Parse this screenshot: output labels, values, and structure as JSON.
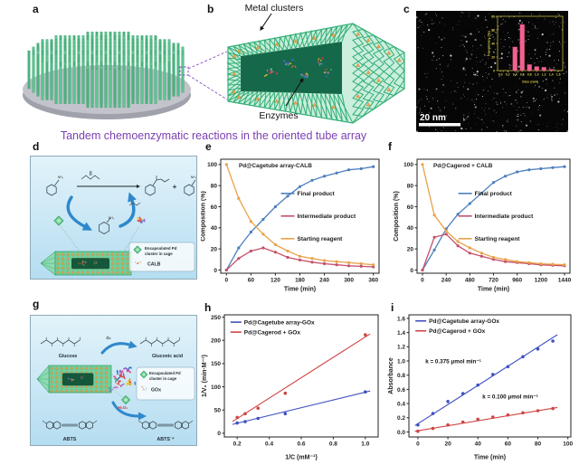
{
  "figure": {
    "caption": "Tandem chemoenzymatic reactions in the oriented tube array",
    "panel_labels": {
      "a": "a",
      "b": "b",
      "c": "c",
      "d": "d",
      "e": "e",
      "f": "f",
      "g": "g",
      "h": "h",
      "i": "i"
    }
  },
  "panel_b": {
    "metal_clusters": "Metal clusters",
    "enzymes": "Enzymes"
  },
  "panel_c": {
    "scale_bar": "20 nm"
  },
  "cage_legend": {
    "l1": "Encapsulated Pd",
    "l2": "cluster in cage"
  },
  "panel_d": {
    "plus": "+",
    "nh2": "NH₂",
    "enzyme": "CALB"
  },
  "panel_g": {
    "glucose": "Glucose",
    "gluconic_acid": "Gluconic acid",
    "o2": "O₂",
    "h2o2": "H₂O₂",
    "abts": "ABTS",
    "abts_radical": "ABTS˙⁺",
    "enzyme": "GOx"
  },
  "colors": {
    "caption_purple": "#7c3fb4",
    "pillar_green": "#52bd88",
    "lattice_green": "#2fae74",
    "cluster_orange": "#e8a04c",
    "series_blue": "#4d7fbe",
    "series_red": "#c4506b",
    "series_orange": "#e9a24b",
    "kinetics_blue": "#3f51c1",
    "kinetics_red": "#d04545",
    "hist_pink": "#f2628f",
    "hist_axis_yellow": "#d8ce4a",
    "scheme_arrow_blue": "#2f88cb"
  },
  "chart_data": [
    {
      "id": "size_histogram",
      "type": "bar",
      "xlabel": "Size (nm)",
      "ylabel": "Frequency (%)",
      "xlim": [
        -0.08,
        1.72
      ],
      "ylim": [
        0,
        80
      ],
      "xticks": [
        0,
        0.2,
        0.4,
        0.6,
        0.8,
        1.0,
        1.2,
        1.4,
        1.6
      ],
      "xdec": 1,
      "yticks": [
        0,
        20,
        40,
        60,
        80
      ],
      "ydec": 0,
      "x": [
        0.4,
        0.6,
        0.8,
        1.0,
        1.2,
        1.4
      ],
      "bar_width": 0.13,
      "bar_color": "#f2628f",
      "axis_color": "#d8ce4a",
      "series": [
        {
          "name": "",
          "values": [
            35,
            68,
            9,
            6,
            5,
            2
          ]
        }
      ]
    },
    {
      "id": "calb_tube",
      "type": "line",
      "title": "Pd@Cagetube array-CALB",
      "xlabel": "Time (min)",
      "ylabel": "Composition (%)",
      "xlim": [
        -14,
        374
      ],
      "ylim": [
        -3,
        105
      ],
      "xticks": [
        0,
        60,
        120,
        180,
        240,
        300,
        360
      ],
      "xdec": 0,
      "yticks": [
        0,
        20,
        40,
        60,
        80,
        100
      ],
      "ydec": 0,
      "x": [
        0,
        30,
        60,
        90,
        120,
        150,
        180,
        210,
        240,
        270,
        300,
        330,
        360
      ],
      "legend_pos": [
        0.38,
        0.3
      ],
      "series": [
        {
          "name": "Final product",
          "color": "#4d7fbe",
          "values": [
            0,
            21,
            36,
            48,
            60,
            70,
            79,
            85,
            89,
            92,
            95,
            96,
            98
          ]
        },
        {
          "name": "Intermediate product",
          "color": "#c4506b",
          "values": [
            0,
            11,
            18,
            21,
            17,
            12,
            9.5,
            7.5,
            6,
            5,
            4,
            3.5,
            3
          ]
        },
        {
          "name": "Starting reagent",
          "color": "#e9a24b",
          "values": [
            100,
            68,
            46,
            34,
            24,
            18,
            13,
            11,
            9,
            8,
            7,
            6,
            5
          ]
        }
      ]
    },
    {
      "id": "calb_rod",
      "type": "line",
      "title": "Pd@Cagerod + CALB",
      "xlabel": "Time (min)",
      "ylabel": "Composition (%)",
      "xlim": [
        -55,
        1495
      ],
      "ylim": [
        -3,
        105
      ],
      "xticks": [
        0,
        240,
        480,
        720,
        960,
        1200,
        1440
      ],
      "xdec": 0,
      "yticks": [
        0,
        20,
        40,
        60,
        80,
        100
      ],
      "ydec": 0,
      "x": [
        0,
        120,
        240,
        360,
        480,
        600,
        720,
        840,
        960,
        1080,
        1200,
        1320,
        1440
      ],
      "legend_pos": [
        0.27,
        0.3
      ],
      "series": [
        {
          "name": "Final product",
          "color": "#4d7fbe",
          "values": [
            0,
            19,
            39,
            53,
            63,
            73,
            83,
            89,
            93,
            95,
            96,
            97,
            98
          ]
        },
        {
          "name": "Intermediate product",
          "color": "#c4506b",
          "values": [
            0,
            31,
            34,
            23,
            16,
            13,
            10,
            8,
            7,
            6,
            5,
            4.5,
            4
          ]
        },
        {
          "name": "Starting reagent",
          "color": "#e9a24b",
          "values": [
            100,
            52,
            37,
            27,
            21,
            16,
            12,
            10,
            8,
            7,
            6,
            5.5,
            5
          ]
        }
      ]
    },
    {
      "id": "gox_lineweaver",
      "type": "scatter",
      "xlabel": "1/C (mM⁻¹)",
      "ylabel": "1/V₀ (min·M⁻¹)",
      "xlim": [
        0.12,
        1.08
      ],
      "ylim": [
        -8,
        255
      ],
      "xticks": [
        0.2,
        0.4,
        0.6,
        0.8,
        1.0
      ],
      "xdec": 1,
      "yticks": [
        0,
        50,
        100,
        150,
        200,
        250
      ],
      "ydec": 0,
      "legend_pos": [
        0.04,
        0.06
      ],
      "series": [
        {
          "name": "Pd@Cagetube array-GOx",
          "color": "#3f51c1",
          "x": [
            0.2,
            0.25,
            0.33,
            0.5,
            1.0
          ],
          "values": [
            22,
            25,
            32,
            42,
            89
          ],
          "fit": [
            [
              0.17,
              19
            ],
            [
              1.03,
              91
            ]
          ]
        },
        {
          "name": "Pd@Cagerod + GOx",
          "color": "#d04545",
          "x": [
            0.2,
            0.25,
            0.33,
            0.5,
            1.0
          ],
          "values": [
            34,
            42,
            54,
            86,
            212
          ],
          "fit": [
            [
              0.17,
              25
            ],
            [
              1.03,
              214
            ]
          ]
        }
      ]
    },
    {
      "id": "gox_kinetics",
      "type": "scatter",
      "xlabel": "Time (min)",
      "ylabel": "Absorbance",
      "xlim": [
        -6,
        102
      ],
      "ylim": [
        -0.07,
        1.65
      ],
      "xticks": [
        0,
        20,
        40,
        60,
        80,
        100
      ],
      "xdec": 0,
      "yticks": [
        0,
        0.2,
        0.4,
        0.6,
        0.8,
        1.0,
        1.2,
        1.4,
        1.6
      ],
      "ydec": 1,
      "legend_pos": [
        0.04,
        0.05
      ],
      "annotations": [
        {
          "text": "k = 0.375 μmol min⁻¹",
          "x": 5,
          "y": 0.97
        },
        {
          "text": "k = 0.100 μmol min⁻¹",
          "x": 43,
          "y": 0.47
        }
      ],
      "series": [
        {
          "name": "Pd@Cagetube array-GOx",
          "color": "#3f51c1",
          "x": [
            0,
            10,
            20,
            30,
            40,
            50,
            60,
            70,
            80,
            90
          ],
          "values": [
            0.1,
            0.26,
            0.43,
            0.54,
            0.66,
            0.81,
            0.92,
            1.06,
            1.17,
            1.28
          ],
          "fit": [
            [
              -2,
              0.09
            ],
            [
              93,
              1.37
            ]
          ]
        },
        {
          "name": "Pd@Cagerod + GOx",
          "color": "#d04545",
          "x": [
            0,
            10,
            20,
            30,
            40,
            50,
            60,
            70,
            80,
            90
          ],
          "values": [
            0.01,
            0.05,
            0.1,
            0.14,
            0.18,
            0.21,
            0.24,
            0.27,
            0.3,
            0.33
          ],
          "fit": [
            [
              -2,
              0.01
            ],
            [
              93,
              0.345
            ]
          ]
        }
      ]
    }
  ]
}
